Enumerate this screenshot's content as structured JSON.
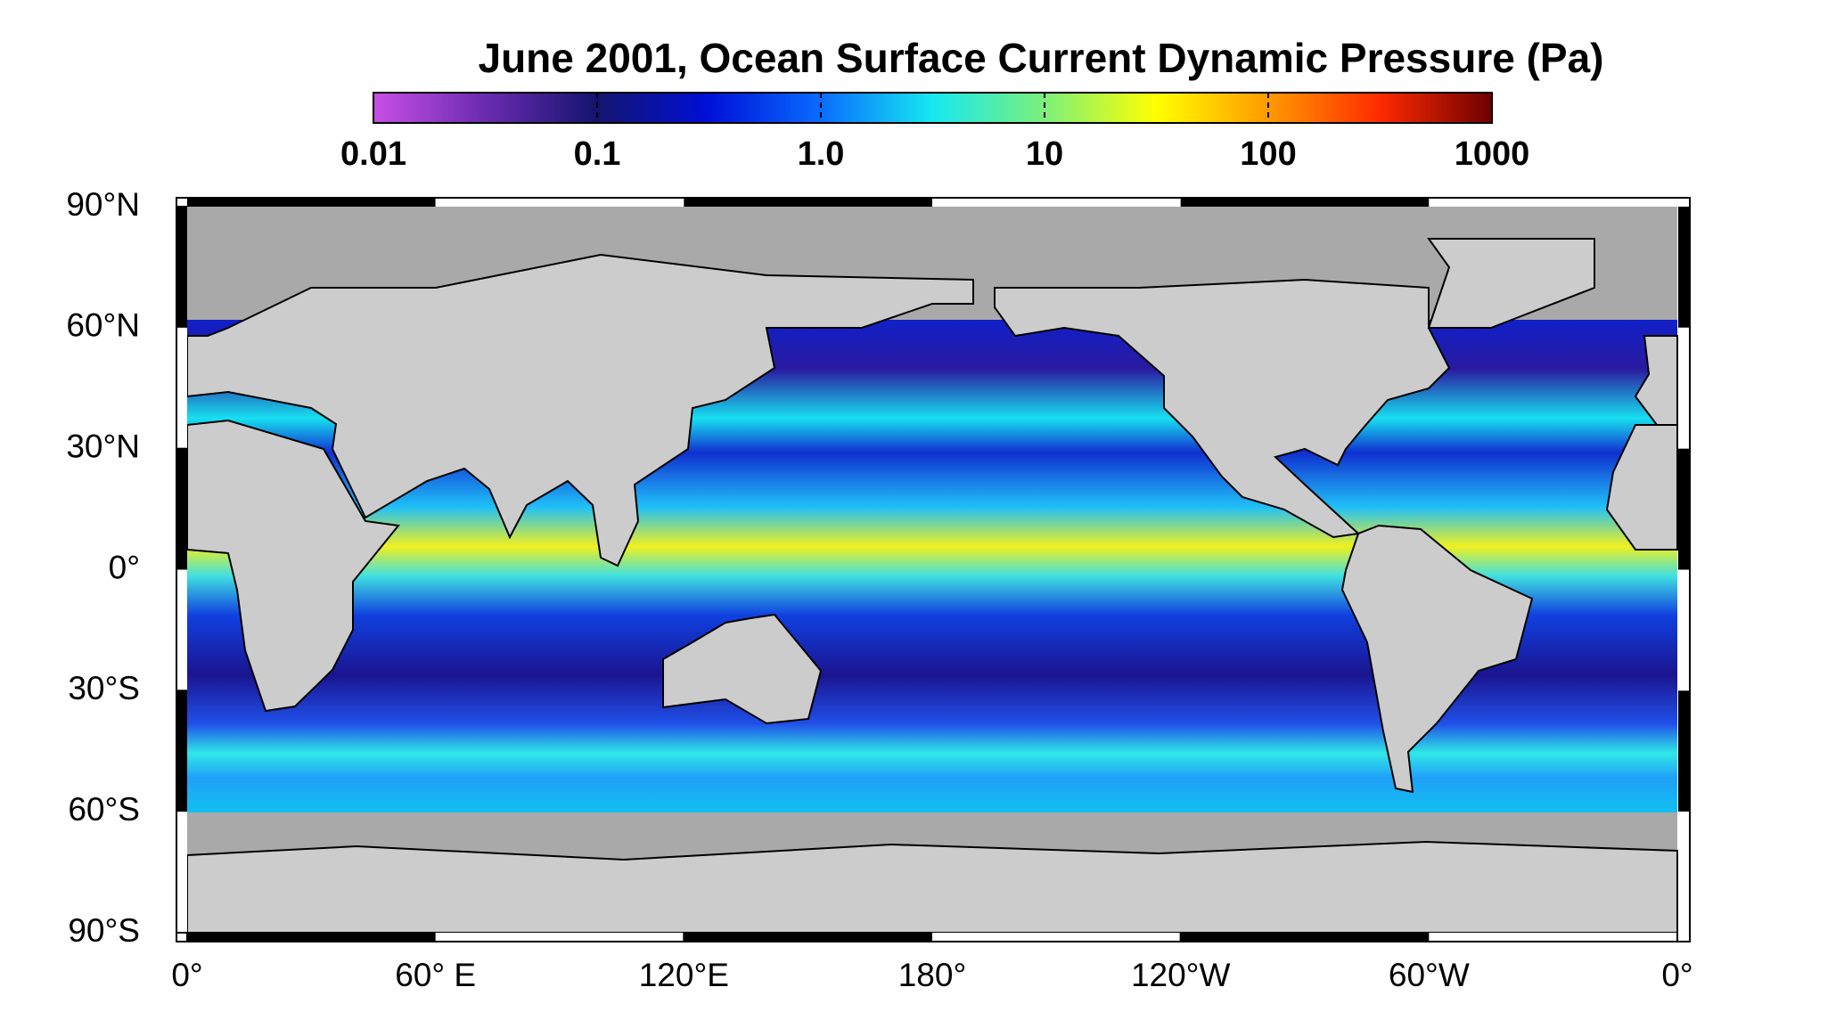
{
  "title": "June 2001, Ocean Surface Current Dynamic Pressure (Pa)",
  "colorbar": {
    "scale": "log",
    "lim": [
      0.01,
      1000
    ],
    "ticks": [
      0.01,
      0.1,
      {
        "value": 1,
        "label": "1.0"
      },
      10,
      100,
      1000
    ],
    "colors": [
      "#c84fe6",
      "#6a2bb0",
      "#14146e",
      "#0010d8",
      "#0a6cff",
      "#16e8f0",
      "#7cf07a",
      "#ffff00",
      "#ff9a00",
      "#ff2a00",
      "#6e0000"
    ]
  },
  "map": {
    "lat_ticks": [
      {
        "value": 90,
        "label": "90°N"
      },
      {
        "value": 60,
        "label": "60°N"
      },
      {
        "value": 30,
        "label": "30°N"
      },
      {
        "value": 0,
        "label": "0°"
      },
      {
        "value": -30,
        "label": "30°S"
      },
      {
        "value": -60,
        "label": "60°S"
      },
      {
        "value": -90,
        "label": "90°S"
      }
    ],
    "lon_ticks": [
      {
        "value": 0,
        "label": "0°"
      },
      {
        "value": 60,
        "label": "60° E"
      },
      {
        "value": 120,
        "label": "120°E"
      },
      {
        "value": 180,
        "label": "180°"
      },
      {
        "value": 240,
        "label": "120°W"
      },
      {
        "value": 300,
        "label": "60°W"
      },
      {
        "value": 360,
        "label": "0°"
      }
    ]
  }
}
